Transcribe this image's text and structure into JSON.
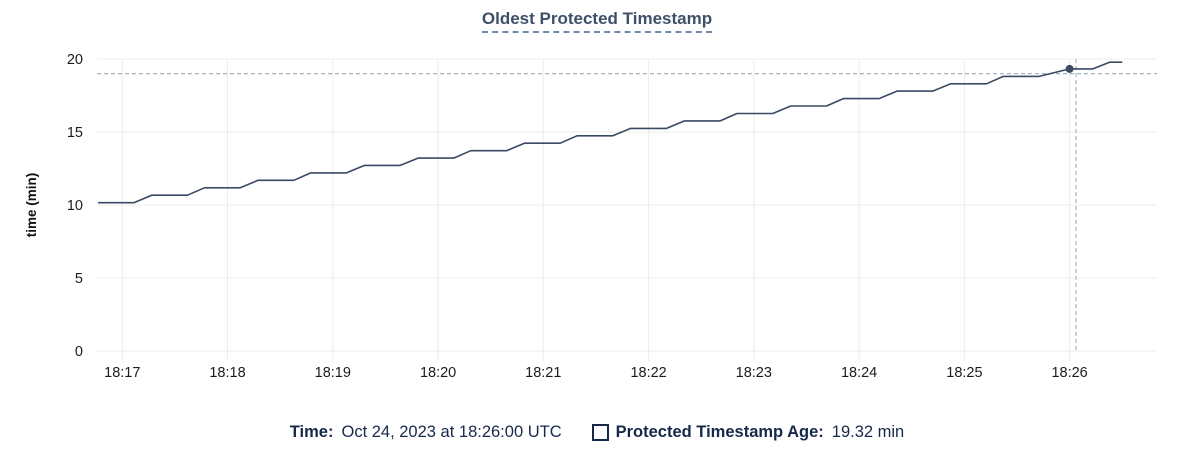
{
  "title": "Oldest Protected Timestamp",
  "footer": {
    "time_label": "Time:",
    "time_value": "Oct 24, 2023 at 18:26:00 UTC",
    "series_label": "Protected Timestamp Age:",
    "series_value": "19.32 min"
  },
  "colors": {
    "title": "#3e5069",
    "title_underline": "#7388a8",
    "line": "#3a4a63",
    "grid": "#ececec",
    "crosshair": "#a6b6c0",
    "tick_label": "#1c1c1c",
    "axis_title": "#111111",
    "footer_text": "#16294b",
    "background": "#ffffff"
  },
  "chart_data": {
    "type": "line",
    "title": "Oldest Protected Timestamp",
    "xlabel": "",
    "ylabel": "time (min)",
    "x_unit": "clock time (UTC), minutes after 18:00",
    "xlim": [
      16.76,
      26.83
    ],
    "ylim": [
      0,
      20
    ],
    "grid": true,
    "legend_position": "bottom",
    "x_ticks": [
      {
        "t": 17,
        "label": "18:17"
      },
      {
        "t": 18,
        "label": "18:18"
      },
      {
        "t": 19,
        "label": "18:19"
      },
      {
        "t": 20,
        "label": "18:20"
      },
      {
        "t": 21,
        "label": "18:21"
      },
      {
        "t": 22,
        "label": "18:22"
      },
      {
        "t": 23,
        "label": "18:23"
      },
      {
        "t": 24,
        "label": "18:24"
      },
      {
        "t": 25,
        "label": "18:25"
      },
      {
        "t": 26,
        "label": "18:26"
      }
    ],
    "y_ticks": [
      0,
      5,
      10,
      15,
      20
    ],
    "series": [
      {
        "name": "Protected Timestamp Age",
        "points": [
          [
            16.77,
            10.16
          ],
          [
            17.11,
            10.16
          ],
          [
            17.28,
            10.67
          ],
          [
            17.62,
            10.67
          ],
          [
            17.78,
            11.18
          ],
          [
            18.12,
            11.18
          ],
          [
            18.29,
            11.69
          ],
          [
            18.63,
            11.69
          ],
          [
            18.79,
            12.2
          ],
          [
            19.13,
            12.2
          ],
          [
            19.3,
            12.71
          ],
          [
            19.64,
            12.71
          ],
          [
            19.81,
            13.21
          ],
          [
            20.15,
            13.21
          ],
          [
            20.31,
            13.72
          ],
          [
            20.65,
            13.72
          ],
          [
            20.82,
            14.23
          ],
          [
            21.16,
            14.23
          ],
          [
            21.32,
            14.74
          ],
          [
            21.66,
            14.74
          ],
          [
            21.83,
            15.25
          ],
          [
            22.17,
            15.25
          ],
          [
            22.34,
            15.76
          ],
          [
            22.68,
            15.76
          ],
          [
            22.84,
            16.27
          ],
          [
            23.18,
            16.27
          ],
          [
            23.35,
            16.78
          ],
          [
            23.69,
            16.78
          ],
          [
            23.85,
            17.29
          ],
          [
            24.19,
            17.29
          ],
          [
            24.36,
            17.8
          ],
          [
            24.7,
            17.8
          ],
          [
            24.87,
            18.3
          ],
          [
            25.21,
            18.3
          ],
          [
            25.37,
            18.81
          ],
          [
            25.71,
            18.81
          ],
          [
            26.0,
            19.32
          ],
          [
            26.22,
            19.32
          ],
          [
            26.38,
            19.78
          ],
          [
            26.5,
            19.78
          ]
        ]
      }
    ],
    "highlight": {
      "t": 26.0,
      "value": 19.32,
      "time_text": "Oct 24, 2023 at 18:26:00 UTC",
      "value_text": "19.32 min",
      "crosshair_t": 26.06,
      "crosshair_value": 19.0
    }
  }
}
